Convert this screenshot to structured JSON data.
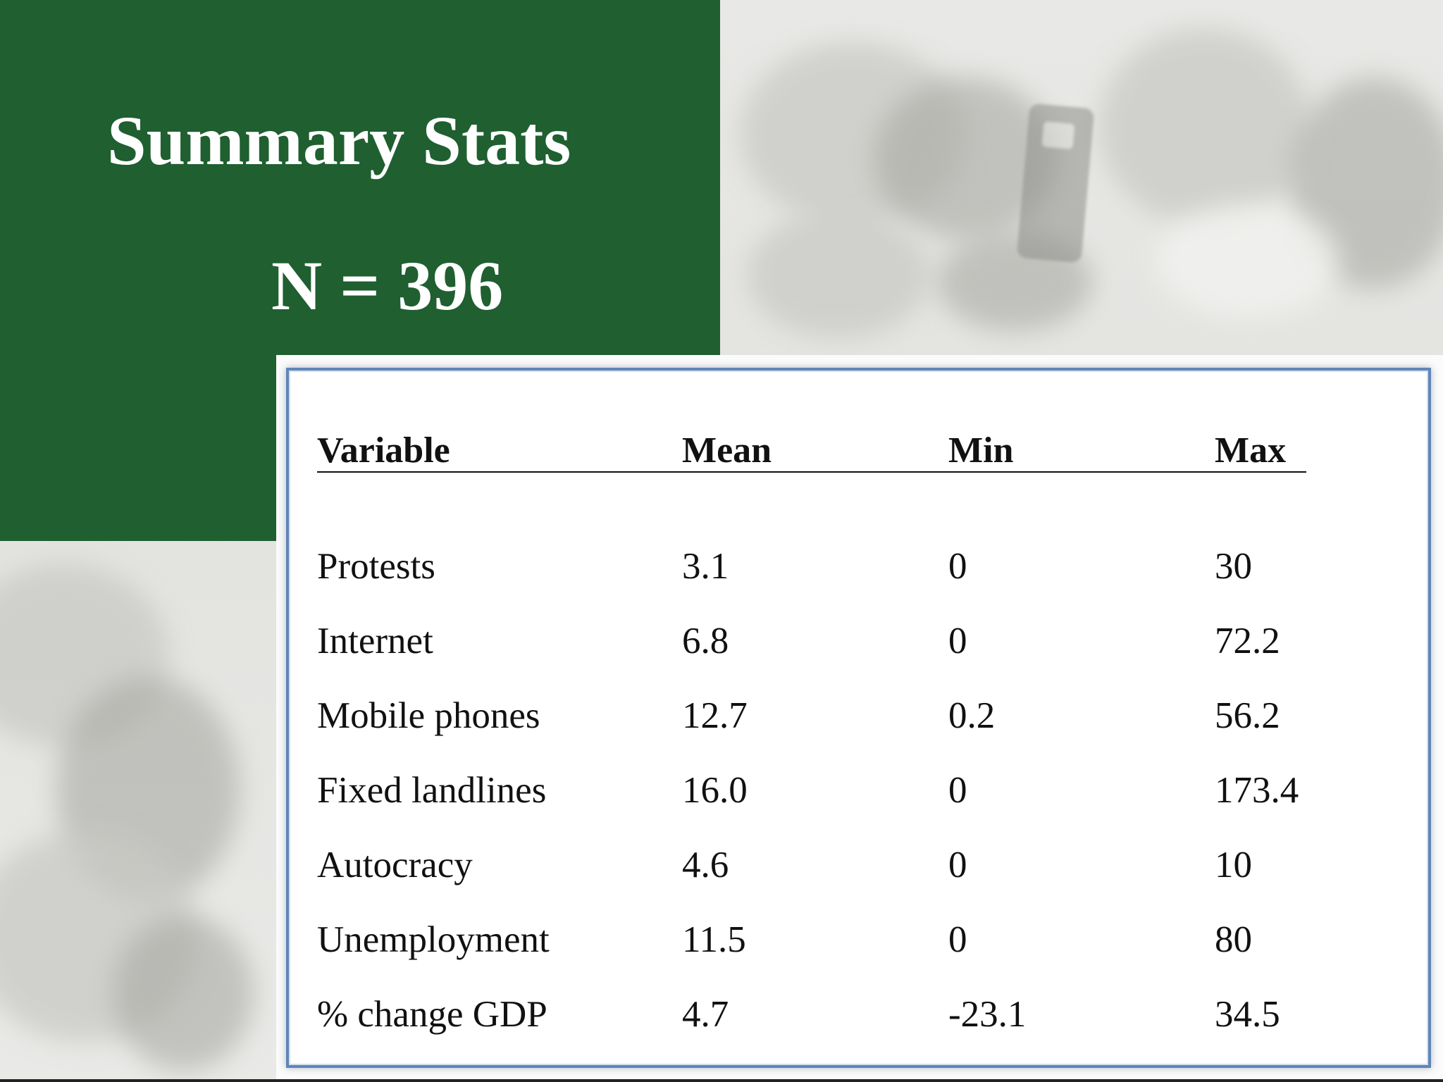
{
  "slide": {
    "title": "Summary Stats",
    "subtitle": "N = 396"
  },
  "table": {
    "headers": [
      "Variable",
      "Mean",
      "Min",
      "Max"
    ],
    "rows": [
      [
        "Protests",
        "3.1",
        "0",
        "30"
      ],
      [
        "Internet",
        "6.8",
        "0",
        "72.2"
      ],
      [
        "Mobile phones",
        "12.7",
        "0.2",
        "56.2"
      ],
      [
        "Fixed landlines",
        "16.0",
        "0",
        "173.4"
      ],
      [
        "Autocracy",
        "4.6",
        "0",
        "10"
      ],
      [
        "Unemployment",
        "11.5",
        "0",
        "80"
      ],
      [
        "% change GDP",
        "4.7",
        "-23.1",
        "34.5"
      ]
    ]
  },
  "colors": {
    "panel_green": "#1f5f30",
    "frame_blue": "#5f86b8",
    "background_grey": "#e6e6e4"
  }
}
